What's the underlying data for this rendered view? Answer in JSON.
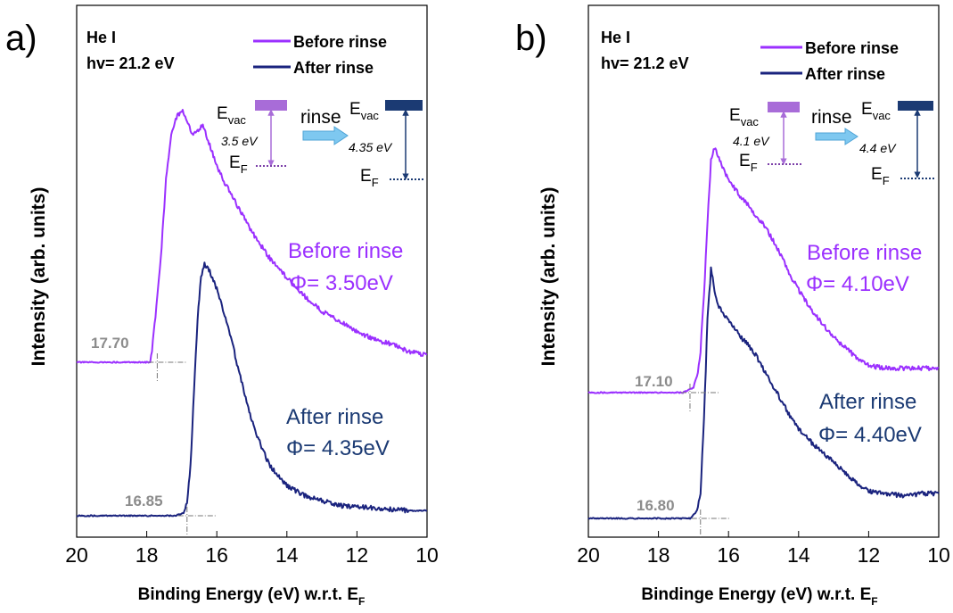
{
  "colors": {
    "before": "#9B30FF",
    "after": "#1A237E",
    "cutoff_label": "#8C8C8C",
    "before_box": "#A86CD8",
    "after_box": "#1B3A73",
    "arrow_fill": "#7EC8F0"
  },
  "chart_data": [
    {
      "panel_label": "a)",
      "type": "line",
      "xlabel": "Binding Energy (eV) w.r.t. E",
      "xlabel_sub": "F",
      "ylabel": "Intensity (arb. units)",
      "xlim": [
        20,
        10
      ],
      "x_ticks": [
        "20",
        "18",
        "16",
        "14",
        "12",
        "10"
      ],
      "source_lines": [
        "He I",
        "hv= 21.2 eV"
      ],
      "legend": [
        "Before rinse",
        "After rinse"
      ],
      "series": [
        {
          "name": "Before rinse",
          "x": [
            20,
            19,
            18.2,
            17.9,
            17.85,
            17.75,
            17.6,
            17.45,
            17.3,
            17.15,
            17.0,
            16.9,
            16.8,
            16.7,
            16.6,
            16.5,
            16.4,
            16.3,
            16.2,
            16.1,
            16.0,
            15.8,
            15.6,
            15.4,
            15.2,
            15.0,
            14.8,
            14.5,
            14.0,
            13.5,
            13.0,
            12.5,
            12.0,
            11.5,
            11.0,
            10.5,
            10.0
          ],
          "y": [
            0.0,
            0.0,
            0.0,
            0.0,
            0.05,
            0.18,
            0.4,
            0.72,
            0.9,
            0.96,
            0.99,
            0.97,
            0.93,
            0.89,
            0.9,
            0.91,
            0.93,
            0.89,
            0.85,
            0.81,
            0.77,
            0.71,
            0.66,
            0.61,
            0.56,
            0.51,
            0.47,
            0.41,
            0.33,
            0.26,
            0.2,
            0.16,
            0.12,
            0.09,
            0.07,
            0.04,
            0.03
          ]
        },
        {
          "name": "After rinse",
          "x": [
            20,
            19,
            18,
            17.2,
            16.95,
            16.85,
            16.75,
            16.65,
            16.55,
            16.45,
            16.35,
            16.2,
            16.0,
            15.8,
            15.6,
            15.4,
            15.2,
            15.0,
            14.8,
            14.5,
            14.0,
            13.5,
            13.0,
            12.5,
            12.0,
            11.5,
            11.0,
            10.5,
            10.0
          ],
          "y": [
            0.0,
            0.0,
            0.0,
            0.0,
            0.01,
            0.05,
            0.2,
            0.5,
            0.78,
            0.95,
            1.0,
            0.97,
            0.9,
            0.81,
            0.71,
            0.59,
            0.48,
            0.38,
            0.3,
            0.2,
            0.12,
            0.08,
            0.06,
            0.04,
            0.035,
            0.03,
            0.025,
            0.02,
            0.02
          ]
        }
      ],
      "cutoff_labels": [
        "17.70",
        "16.85"
      ],
      "annotations": {
        "before_label": "Before rinse",
        "before_phi": "Φ= 3.50eV",
        "after_label": "After rinse",
        "after_phi": "Φ= 4.35eV",
        "evac": "E",
        "evac_sub": "vac",
        "ef": "E",
        "ef_sub": "F",
        "rinse": "rinse",
        "before_wf": "3.5 eV",
        "after_wf": "4.35 eV"
      }
    },
    {
      "panel_label": "b)",
      "type": "line",
      "xlabel": "Bindinge Energy (eV) w.r.t. E",
      "xlabel_sub": "F",
      "ylabel": "Intensity (arb. units)",
      "xlim": [
        20,
        10
      ],
      "x_ticks": [
        "20",
        "18",
        "16",
        "14",
        "12",
        "10"
      ],
      "source_lines": [
        "He I",
        "hv= 21.2 eV"
      ],
      "legend": [
        "Before rinse",
        "After rinse"
      ],
      "series": [
        {
          "name": "Before rinse",
          "x": [
            20,
            19,
            18,
            17.3,
            17.0,
            16.9,
            16.8,
            16.7,
            16.6,
            16.5,
            16.4,
            16.3,
            16.2,
            16.0,
            15.8,
            15.6,
            15.4,
            15.2,
            15.0,
            14.8,
            14.6,
            14.4,
            14.2,
            14.0,
            13.6,
            13.2,
            12.8,
            12.4,
            12.0,
            11.5,
            11.0,
            10.5,
            10.0
          ],
          "y": [
            0.0,
            0.0,
            0.0,
            0.0,
            0.02,
            0.06,
            0.17,
            0.4,
            0.7,
            0.95,
            1.0,
            0.97,
            0.93,
            0.87,
            0.83,
            0.79,
            0.76,
            0.72,
            0.69,
            0.64,
            0.59,
            0.53,
            0.47,
            0.42,
            0.33,
            0.26,
            0.2,
            0.15,
            0.11,
            0.1,
            0.1,
            0.1,
            0.1
          ]
        },
        {
          "name": "After rinse",
          "x": [
            20,
            19,
            18,
            17.1,
            16.9,
            16.8,
            16.7,
            16.6,
            16.5,
            16.4,
            16.3,
            16.2,
            16.0,
            15.8,
            15.6,
            15.4,
            15.2,
            15.0,
            14.8,
            14.6,
            14.4,
            14.2,
            14.0,
            13.6,
            13.2,
            12.8,
            12.4,
            12.0,
            11.5,
            11.0,
            10.5,
            10.0
          ],
          "y": [
            0.0,
            0.0,
            0.0,
            0.0,
            0.03,
            0.1,
            0.4,
            0.8,
            1.0,
            0.92,
            0.86,
            0.83,
            0.8,
            0.76,
            0.72,
            0.69,
            0.65,
            0.6,
            0.55,
            0.5,
            0.45,
            0.4,
            0.36,
            0.3,
            0.25,
            0.2,
            0.15,
            0.11,
            0.1,
            0.09,
            0.1,
            0.1
          ]
        }
      ],
      "cutoff_labels": [
        "17.10",
        "16.80"
      ],
      "annotations": {
        "before_label": "Before rinse",
        "before_phi": "Φ= 4.10eV",
        "after_label": "After rinse",
        "after_phi": "Φ= 4.40eV",
        "evac": "E",
        "evac_sub": "vac",
        "ef": "E",
        "ef_sub": "F",
        "rinse": "rinse",
        "before_wf": "4.1 eV",
        "after_wf": "4.4 eV"
      }
    }
  ]
}
